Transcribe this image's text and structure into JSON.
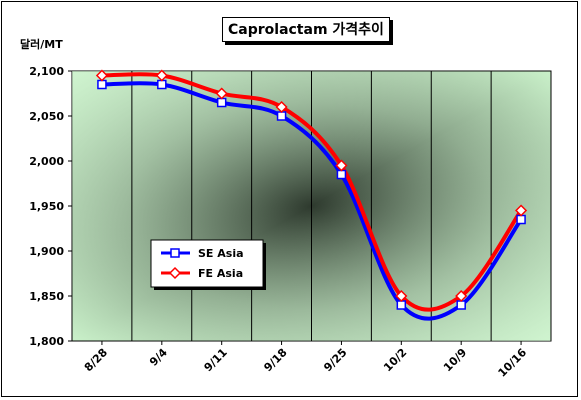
{
  "chart_data": {
    "type": "line",
    "title": "Caprolactam 가격추이",
    "ylabel": "달러/MT",
    "xlabel": "",
    "categories": [
      "8/28",
      "9/4",
      "9/11",
      "9/18",
      "9/25",
      "10/2",
      "10/9",
      "10/16"
    ],
    "ylim": [
      1800,
      2100
    ],
    "yticks": [
      "1,800",
      "1,850",
      "1,900",
      "1,950",
      "2,000",
      "2,050",
      "2,100"
    ],
    "grid": true,
    "legend_position": "lower-left",
    "series": [
      {
        "name": "SE Asia",
        "values": [
          2085,
          2085,
          2065,
          2050,
          1985,
          1840,
          1840,
          1935
        ],
        "color": "#0000ff",
        "marker": "square"
      },
      {
        "name": "FE Asia",
        "values": [
          2095,
          2095,
          2075,
          2060,
          1995,
          1850,
          1850,
          1945
        ],
        "color": "#ff0000",
        "marker": "diamond"
      }
    ]
  }
}
